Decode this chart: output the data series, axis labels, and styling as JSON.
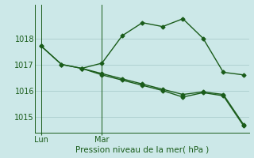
{
  "xlabel": "Pression niveau de la mer( hPa )",
  "background_color": "#cce8e8",
  "line_color": "#1a5c1a",
  "grid_color": "#aacccc",
  "ylim": [
    1014.4,
    1019.3
  ],
  "yticks": [
    1015,
    1016,
    1017,
    1018
  ],
  "series1_x": [
    0,
    1,
    2,
    3,
    4,
    5,
    6,
    7,
    8,
    9,
    10
  ],
  "series1_y": [
    1017.7,
    1017.0,
    1016.85,
    1017.05,
    1018.1,
    1018.6,
    1018.45,
    1018.75,
    1018.0,
    1016.7,
    1016.6
  ],
  "series2_x": [
    0,
    1,
    2,
    3,
    4,
    5,
    6,
    7,
    8,
    9,
    10
  ],
  "series2_y": [
    1017.7,
    1017.0,
    1016.85,
    1016.65,
    1016.45,
    1016.25,
    1016.05,
    1015.85,
    1015.95,
    1015.85,
    1014.7
  ],
  "series3_x": [
    2,
    3,
    4,
    5,
    6,
    7,
    8,
    9,
    10
  ],
  "series3_y": [
    1016.85,
    1016.6,
    1016.4,
    1016.2,
    1016.0,
    1015.75,
    1015.92,
    1015.8,
    1014.65
  ],
  "lun_x": 0.0,
  "mar_x": 3.0,
  "xlim": [
    -0.3,
    10.3
  ],
  "xtick_positions": [
    0.0,
    3.0
  ],
  "xtick_labels": [
    "Lun",
    "Mar"
  ],
  "marker": "D",
  "markersize": 2.5,
  "linewidth": 1.0,
  "xlabel_fontsize": 7.5,
  "tick_fontsize": 7
}
